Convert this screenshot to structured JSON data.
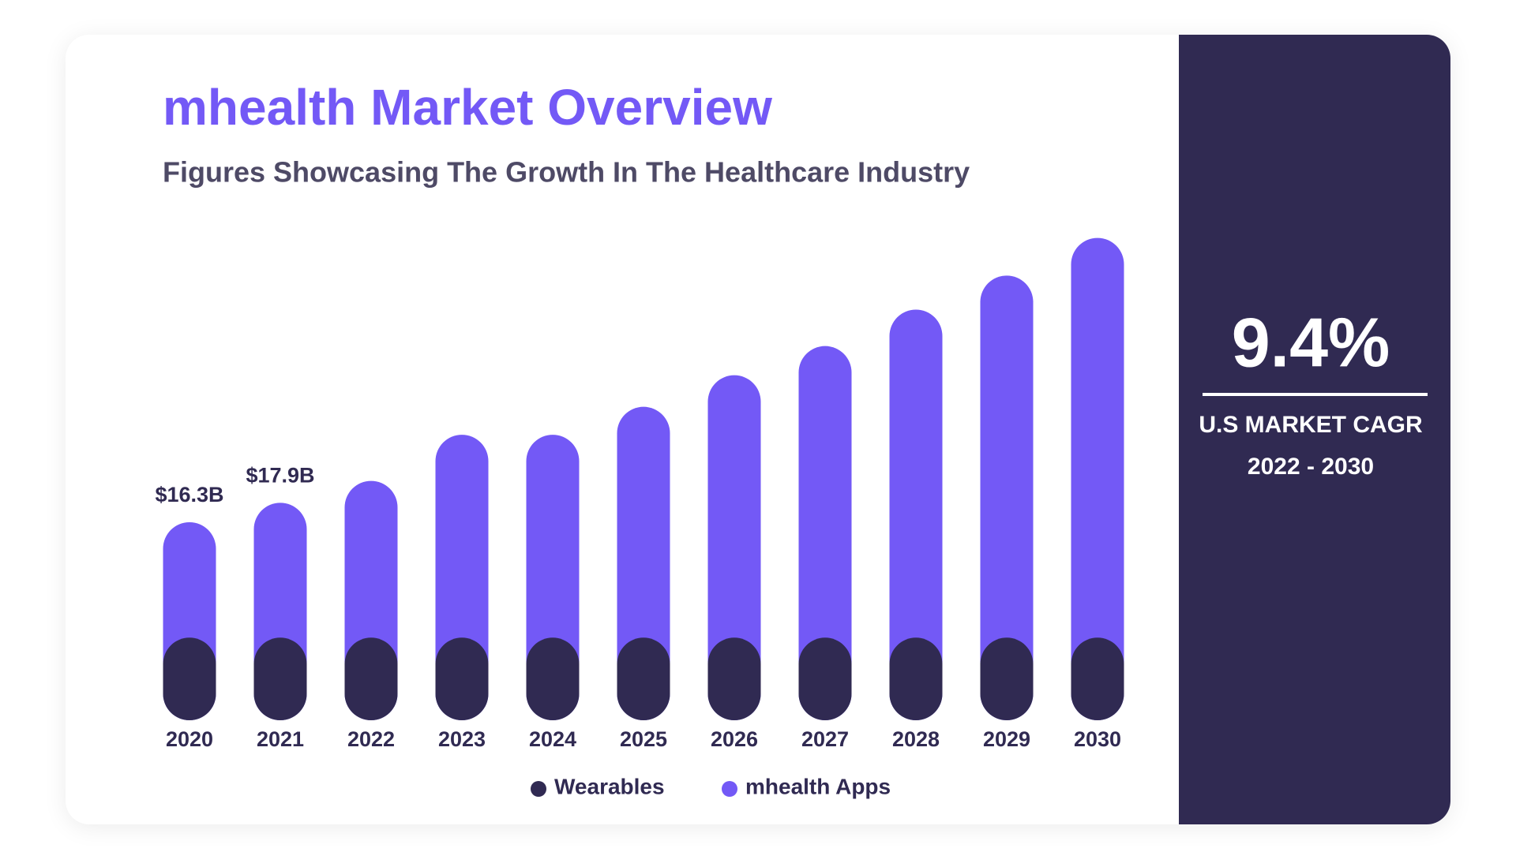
{
  "chart_data": {
    "type": "stacked_bar",
    "title": "mhealth Market Overview",
    "subtitle": "Figures Showcasing The Growth In The Healthcare Industry",
    "categories": [
      "2020",
      "2021",
      "2022",
      "2023",
      "2024",
      "2025",
      "2026",
      "2027",
      "2028",
      "2029",
      "2030"
    ],
    "series": [
      {
        "name": "Wearables",
        "color": "#302a52",
        "values": [
          6.8,
          6.8,
          6.8,
          6.8,
          6.8,
          6.8,
          6.8,
          6.8,
          6.8,
          6.8,
          6.8
        ]
      },
      {
        "name": "mhealth Apps",
        "color": "#7359f6",
        "values": [
          9.5,
          11.1,
          12.9,
          16.7,
          16.7,
          19.0,
          21.6,
          24.0,
          27.0,
          29.8,
          32.9
        ]
      }
    ],
    "annotations": [
      {
        "category": "2020",
        "value": 16.3,
        "label": "$16.3B"
      },
      {
        "category": "2021",
        "value": 17.9,
        "label": "$17.9B"
      }
    ]
  },
  "callout": {
    "value": "9.4%",
    "label": "U.S MARKET CAGR",
    "period": "2022 - 2030"
  }
}
